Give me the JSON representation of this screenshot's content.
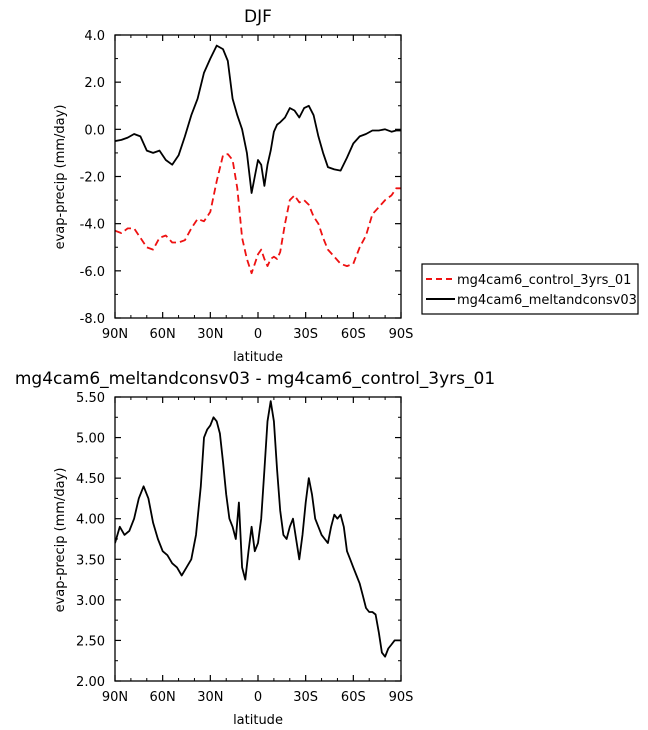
{
  "chart_data": [
    {
      "type": "line",
      "title": "DJF",
      "xlabel": "latitude",
      "ylabel": "evap-precip (mm/day)",
      "xlim": [
        90,
        -90
      ],
      "ylim": [
        -8.0,
        4.0
      ],
      "x_ticks": [
        90,
        60,
        30,
        0,
        -30,
        -60,
        -90
      ],
      "x_tick_labels": [
        "90N",
        "60N",
        "30N",
        "0",
        "30S",
        "60S",
        "90S"
      ],
      "y_ticks": [
        -8.0,
        -6.0,
        -4.0,
        -2.0,
        0.0,
        2.0,
        4.0
      ],
      "y_tick_labels": [
        "-8.0",
        "-6.0",
        "-4.0",
        "-2.0",
        "0.0",
        "2.0",
        "4.0"
      ],
      "grid": false,
      "legend_position": "right",
      "series": [
        {
          "name": "mg4cam6_control_3yrs_01",
          "color": "#ee1111",
          "dash": "dashed",
          "x": [
            90,
            86,
            82,
            78,
            74,
            70,
            66,
            62,
            58,
            54,
            50,
            46,
            42,
            38,
            34,
            30,
            26,
            22,
            19,
            16,
            13,
            10,
            7,
            4,
            2,
            0,
            -2,
            -4,
            -6,
            -8,
            -10,
            -12,
            -14,
            -17,
            -20,
            -23,
            -26,
            -29,
            -32,
            -35,
            -38,
            -41,
            -44,
            -48,
            -52,
            -56,
            -60,
            -64,
            -68,
            -72,
            -76,
            -80,
            -84,
            -87,
            -90
          ],
          "values": [
            -4.3,
            -4.4,
            -4.2,
            -4.2,
            -4.6,
            -5.0,
            -5.1,
            -4.6,
            -4.5,
            -4.8,
            -4.8,
            -4.7,
            -4.2,
            -3.8,
            -3.9,
            -3.5,
            -2.2,
            -1.1,
            -1.05,
            -1.3,
            -2.5,
            -4.6,
            -5.5,
            -6.1,
            -5.7,
            -5.3,
            -5.1,
            -5.5,
            -5.8,
            -5.5,
            -5.4,
            -5.5,
            -5.2,
            -4.0,
            -3.0,
            -2.8,
            -3.1,
            -3.0,
            -3.2,
            -3.7,
            -4.0,
            -4.6,
            -5.1,
            -5.4,
            -5.7,
            -5.8,
            -5.7,
            -5.0,
            -4.5,
            -3.6,
            -3.3,
            -3.0,
            -2.8,
            -2.5,
            -2.5
          ]
        },
        {
          "name": "mg4cam6_meltandconsv03",
          "color": "#000000",
          "dash": "solid",
          "x": [
            90,
            86,
            82,
            78,
            74,
            70,
            66,
            62,
            58,
            54,
            50,
            46,
            42,
            38,
            34,
            30,
            26,
            22,
            19,
            16,
            13,
            10,
            7,
            4,
            2,
            0,
            -2,
            -4,
            -6,
            -8,
            -10,
            -12,
            -14,
            -17,
            -20,
            -23,
            -26,
            -29,
            -32,
            -35,
            -38,
            -41,
            -44,
            -48,
            -52,
            -56,
            -60,
            -64,
            -68,
            -72,
            -76,
            -80,
            -84,
            -87,
            -90
          ],
          "values": [
            -0.5,
            -0.45,
            -0.35,
            -0.2,
            -0.3,
            -0.9,
            -1.0,
            -0.9,
            -1.3,
            -1.5,
            -1.1,
            -0.3,
            0.6,
            1.3,
            2.4,
            3.0,
            3.55,
            3.4,
            2.9,
            1.3,
            0.6,
            0.0,
            -1.0,
            -2.7,
            -2.0,
            -1.3,
            -1.5,
            -2.4,
            -1.5,
            -0.9,
            -0.1,
            0.2,
            0.3,
            0.5,
            0.9,
            0.8,
            0.5,
            0.9,
            1.0,
            0.6,
            -0.3,
            -1.0,
            -1.6,
            -1.7,
            -1.75,
            -1.2,
            -0.6,
            -0.3,
            -0.2,
            -0.05,
            -0.05,
            0.0,
            -0.1,
            -0.05,
            -0.05
          ]
        }
      ]
    },
    {
      "type": "line",
      "title": "mg4cam6_meltandconsv03 - mg4cam6_control_3yrs_01",
      "xlabel": "latitude",
      "ylabel": "evap-precip (mm/day)",
      "xlim": [
        90,
        -90
      ],
      "ylim": [
        2.0,
        5.5
      ],
      "x_ticks": [
        90,
        60,
        30,
        0,
        -30,
        -60,
        -90
      ],
      "x_tick_labels": [
        "90N",
        "60N",
        "30N",
        "0",
        "30S",
        "60S",
        "90S"
      ],
      "y_ticks": [
        2.0,
        2.5,
        3.0,
        3.5,
        4.0,
        4.5,
        5.0,
        5.5
      ],
      "y_tick_labels": [
        "2.00",
        "2.50",
        "3.00",
        "3.50",
        "4.00",
        "4.50",
        "5.00",
        "5.50"
      ],
      "grid": false,
      "series": [
        {
          "color": "#000000",
          "dash": "solid",
          "x": [
            90,
            87,
            84,
            81,
            78,
            75,
            72,
            69,
            66,
            63,
            60,
            57,
            54,
            51,
            48,
            45,
            42,
            39,
            36,
            34,
            32,
            30,
            28,
            26,
            24,
            22,
            20,
            18,
            16,
            14,
            12,
            10,
            8,
            6,
            4,
            2,
            0,
            -2,
            -4,
            -6,
            -8,
            -10,
            -12,
            -14,
            -16,
            -18,
            -20,
            -22,
            -24,
            -26,
            -28,
            -30,
            -32,
            -34,
            -36,
            -38,
            -40,
            -42,
            -44,
            -46,
            -48,
            -50,
            -52,
            -54,
            -56,
            -58,
            -60,
            -62,
            -64,
            -66,
            -68,
            -70,
            -72,
            -74,
            -76,
            -78,
            -80,
            -82,
            -84,
            -86,
            -88,
            -90
          ],
          "values": [
            3.7,
            3.9,
            3.8,
            3.85,
            4.0,
            4.25,
            4.4,
            4.25,
            3.95,
            3.75,
            3.6,
            3.55,
            3.45,
            3.4,
            3.3,
            3.4,
            3.5,
            3.8,
            4.4,
            5.0,
            5.1,
            5.15,
            5.25,
            5.2,
            5.05,
            4.7,
            4.3,
            4.0,
            3.9,
            3.75,
            4.2,
            3.4,
            3.25,
            3.6,
            3.9,
            3.6,
            3.7,
            4.0,
            4.6,
            5.2,
            5.45,
            5.2,
            4.6,
            4.1,
            3.8,
            3.75,
            3.9,
            4.0,
            3.75,
            3.5,
            3.8,
            4.2,
            4.5,
            4.3,
            4.0,
            3.9,
            3.8,
            3.75,
            3.7,
            3.9,
            4.05,
            4.0,
            4.05,
            3.9,
            3.6,
            3.5,
            3.4,
            3.3,
            3.2,
            3.05,
            2.9,
            2.85,
            2.85,
            2.82,
            2.6,
            2.35,
            2.3,
            2.4,
            2.45,
            2.5,
            2.5,
            2.5
          ]
        }
      ]
    }
  ]
}
